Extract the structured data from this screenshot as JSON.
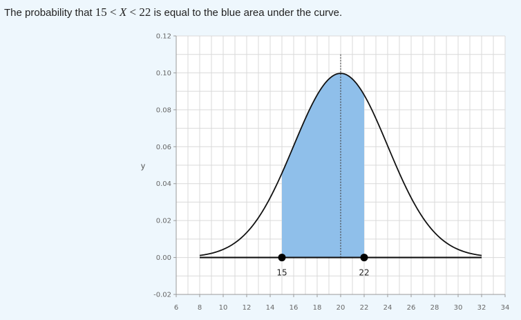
{
  "problem": {
    "prefix": "The probability that ",
    "lower": "15",
    "lt1": "<",
    "var": "X",
    "lt2": "<",
    "upper": "22",
    "suffix": " is equal to the blue area under the curve."
  },
  "chart_data": {
    "type": "area",
    "title": "",
    "xlabel": "",
    "ylabel": "y",
    "distribution": "normal",
    "mean": 20,
    "sd": 4,
    "shaded_interval": [
      15,
      22
    ],
    "point_labels": [
      "15",
      "22"
    ],
    "xlim": [
      6,
      34
    ],
    "ylim": [
      -0.02,
      0.12
    ],
    "x_ticks": [
      "6",
      "8",
      "10",
      "12",
      "14",
      "16",
      "18",
      "20",
      "22",
      "24",
      "26",
      "28",
      "30",
      "32",
      "34"
    ],
    "y_ticks": [
      "-0.02",
      "0.00",
      "0.02",
      "0.04",
      "0.06",
      "0.08",
      "0.10",
      "0.12"
    ],
    "curve_domain": [
      8,
      32
    ],
    "grid": true,
    "mean_line": "dotted",
    "colors": {
      "shade": "#8fbfea",
      "curve": "#111111",
      "grid": "#d9d9d9",
      "background": "#eef7fd"
    }
  }
}
